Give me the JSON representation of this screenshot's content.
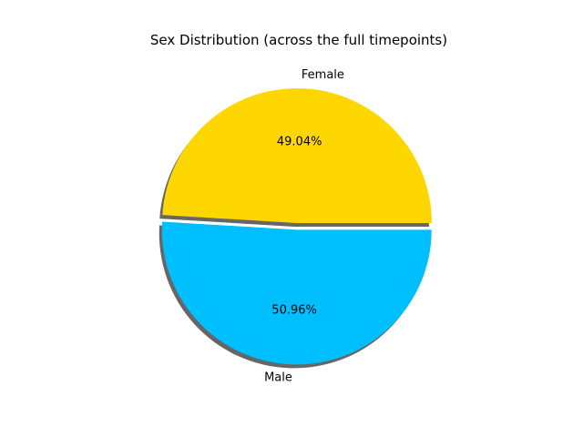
{
  "chart_data": {
    "type": "pie",
    "title": "Sex Distribution (across the full timepoints)",
    "slices": [
      {
        "label": "Female",
        "value": 49.04,
        "pct_label": "49.04%",
        "color": "#FFD700",
        "explode": 0.0
      },
      {
        "label": "Male",
        "value": 50.96,
        "pct_label": "50.96%",
        "color": "#00BFFF",
        "explode": 0.05
      }
    ],
    "start_angle_deg": 0,
    "counterclockwise": true,
    "shadow": true,
    "shadow_color": "#666666"
  }
}
